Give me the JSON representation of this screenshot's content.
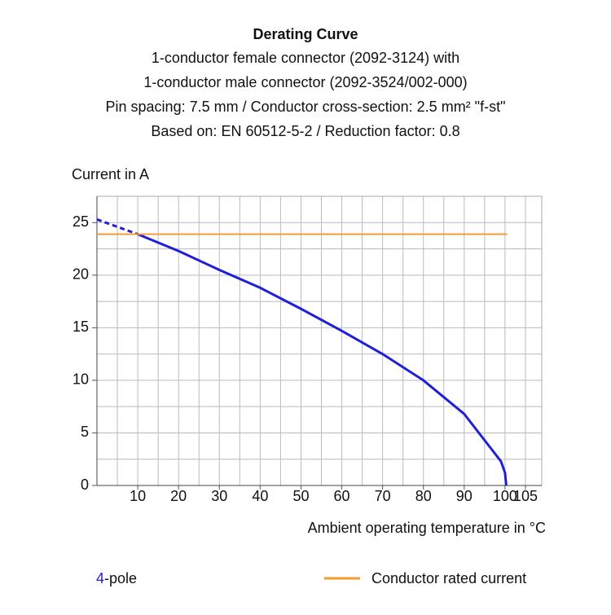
{
  "chart_data": {
    "type": "line",
    "title": "Derating Curve",
    "subtitle": [
      "1-conductor female connector (2092-3124) with",
      "1-conductor male connector  (2092-3524/002-000)",
      "Pin spacing: 7.5 mm / Conductor cross-section: 2.5 mm² \"f-st\"",
      "Based on: EN 60512-5-2 / Reduction factor: 0.8"
    ],
    "y_label": "Current in A",
    "x_label": "Ambient operating temperature in °C",
    "series": [
      {
        "name": "4-pole",
        "color": "#1f1fd6",
        "x": [
          0,
          10,
          20,
          30,
          40,
          50,
          60,
          70,
          80,
          90,
          95,
          99,
          100,
          100.3
        ],
        "values": [
          25.3,
          23.9,
          22.3,
          20.5,
          18.8,
          16.8,
          14.7,
          12.5,
          10.0,
          6.8,
          4.3,
          2.3,
          1.2,
          0
        ]
      },
      {
        "name": "Conductor rated current",
        "color": "#f39c34",
        "x": [
          0,
          100.5
        ],
        "values": [
          23.9,
          23.9
        ]
      }
    ],
    "xlim": [
      0,
      109
    ],
    "ylim": [
      0,
      27.5
    ],
    "xticks": [
      10,
      20,
      30,
      40,
      50,
      60,
      70,
      80,
      90,
      100,
      105
    ],
    "yticks": [
      0,
      5,
      10,
      15,
      20,
      25
    ],
    "grid": true
  }
}
